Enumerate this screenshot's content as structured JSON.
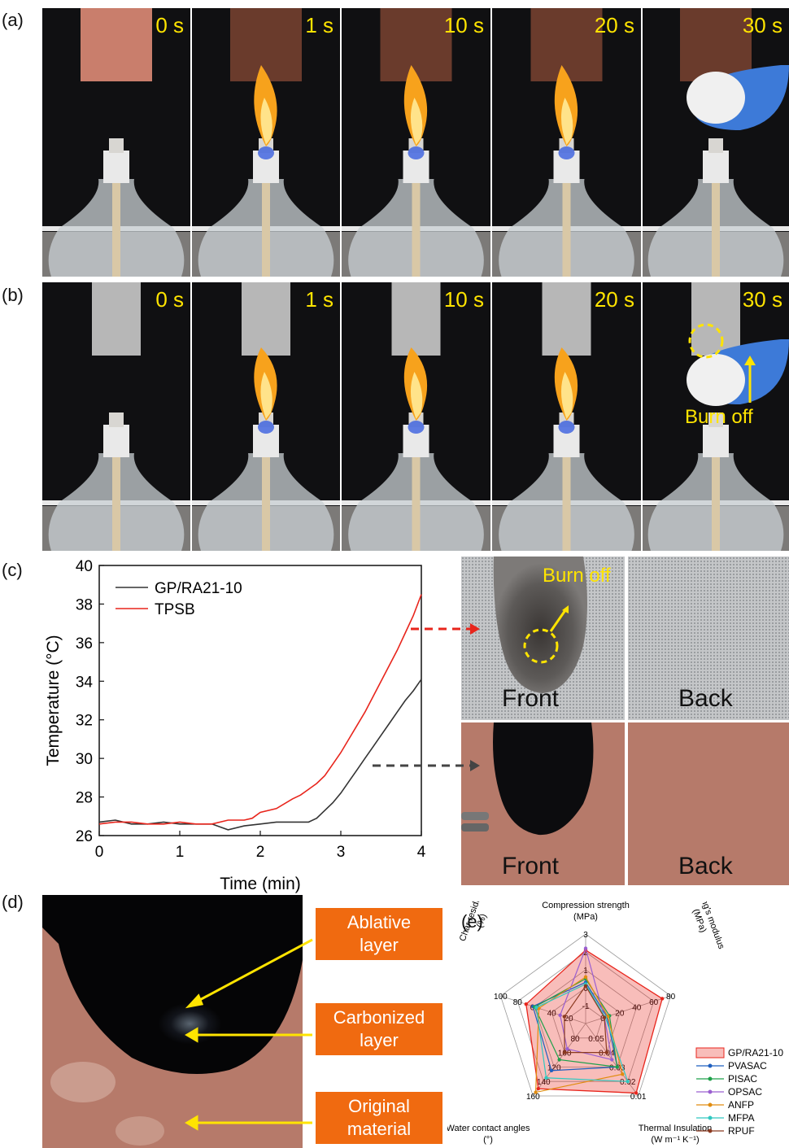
{
  "panels": {
    "a": "(a)",
    "b": "(b)",
    "c": "(c)",
    "d": "(d)",
    "e": "(e)"
  },
  "row_a": {
    "times": [
      "0 s",
      "1 s",
      "10 s",
      "20 s",
      "30 s"
    ]
  },
  "row_b": {
    "times": [
      "0 s",
      "1 s",
      "10 s",
      "20 s",
      "30 s"
    ],
    "annotation": "Burn off"
  },
  "panel_c_photos": {
    "burn_off": "Burn off",
    "front": "Front",
    "back": "Back",
    "front2": "Front",
    "back2": "Back"
  },
  "panel_d": {
    "labels": [
      {
        "line1": "Ablative",
        "line2": "layer"
      },
      {
        "line1": "Carbonized",
        "line2": "layer"
      },
      {
        "line1": "Original",
        "line2": "material"
      }
    ]
  },
  "chart_data": [
    {
      "type": "line",
      "xlabel": "Time (min)",
      "ylabel": "Temperature (°C)",
      "xlim": [
        0,
        4
      ],
      "ylim": [
        26,
        40
      ],
      "xticks": [
        0,
        1,
        2,
        3,
        4
      ],
      "yticks": [
        26,
        28,
        30,
        32,
        34,
        36,
        38,
        40
      ],
      "legend_position": "top-left",
      "series": [
        {
          "name": "GP/RA21-10",
          "color": "#333333",
          "x": [
            0,
            0.2,
            0.4,
            0.6,
            0.8,
            1.0,
            1.2,
            1.4,
            1.6,
            1.8,
            2.0,
            2.2,
            2.4,
            2.6,
            2.7,
            2.8,
            2.9,
            3.0,
            3.1,
            3.2,
            3.3,
            3.4,
            3.5,
            3.6,
            3.7,
            3.8,
            3.9,
            4.0
          ],
          "y": [
            26.7,
            26.8,
            26.6,
            26.6,
            26.7,
            26.6,
            26.6,
            26.6,
            26.3,
            26.5,
            26.6,
            26.7,
            26.7,
            26.7,
            26.9,
            27.3,
            27.7,
            28.2,
            28.8,
            29.4,
            30.0,
            30.6,
            31.2,
            31.8,
            32.4,
            33.0,
            33.5,
            34.1
          ]
        },
        {
          "name": "TPSB",
          "color": "#e8251c",
          "x": [
            0,
            0.2,
            0.4,
            0.6,
            0.8,
            1.0,
            1.2,
            1.4,
            1.6,
            1.8,
            1.9,
            2.0,
            2.2,
            2.4,
            2.5,
            2.6,
            2.7,
            2.8,
            2.9,
            3.0,
            3.1,
            3.2,
            3.3,
            3.4,
            3.5,
            3.6,
            3.7,
            3.8,
            3.9,
            4.0
          ],
          "y": [
            26.6,
            26.7,
            26.7,
            26.6,
            26.6,
            26.7,
            26.6,
            26.6,
            26.8,
            26.8,
            26.9,
            27.2,
            27.4,
            27.9,
            28.1,
            28.4,
            28.7,
            29.1,
            29.7,
            30.3,
            31.0,
            31.7,
            32.4,
            33.2,
            34.0,
            34.8,
            35.6,
            36.5,
            37.4,
            38.5
          ]
        }
      ]
    },
    {
      "type": "radar",
      "title": "",
      "axes": [
        {
          "label_lines": [
            "Compression strength",
            "(MPa)"
          ],
          "ticks": [
            "-1",
            "0",
            "1",
            "2",
            "3"
          ],
          "range": [
            -2,
            3
          ]
        },
        {
          "label_lines": [
            "Young's modulus",
            "(MPa)"
          ],
          "ticks": [
            "0",
            "20",
            "40",
            "60",
            "80"
          ],
          "range": [
            -20,
            80
          ]
        },
        {
          "label_lines": [
            "Thermal Insulation",
            "(W m⁻¹ K⁻¹)"
          ],
          "ticks": [
            "0.05",
            "0.04",
            "0.03",
            "0.02",
            "0.01"
          ],
          "range": [
            0.06,
            0.01
          ]
        },
        {
          "label_lines": [
            "Water contact angles",
            "(°)"
          ],
          "ticks": [
            "80",
            "100",
            "120",
            "140",
            "160"
          ],
          "range": [
            60,
            160
          ]
        },
        {
          "label_lines": [
            "Char residue",
            "(%)"
          ],
          "ticks": [
            "20",
            "40",
            "60",
            "80",
            "100"
          ],
          "range": [
            0,
            100
          ]
        }
      ],
      "series": [
        {
          "name": "GP/RA21-10",
          "color": "#e8251c",
          "fill": true,
          "values": [
            2.1,
            70,
            0.012,
            150,
            70
          ]
        },
        {
          "name": "PVASAC",
          "color": "#1f5fbf",
          "values": [
            0.3,
            5,
            0.03,
            125,
            62
          ]
        },
        {
          "name": "PISAC",
          "color": "#1fa04a",
          "values": [
            0.5,
            8,
            0.03,
            110,
            60
          ]
        },
        {
          "name": "OPSAC",
          "color": "#9a5fd0",
          "values": [
            2.2,
            2,
            0.035,
            95,
            30
          ]
        },
        {
          "name": "ANFP",
          "color": "#e08c10",
          "values": [
            0.6,
            6,
            0.025,
            155,
            55
          ]
        },
        {
          "name": "MFPA",
          "color": "#30c8c0",
          "values": [
            0.2,
            3,
            0.02,
            135,
            58
          ]
        },
        {
          "name": "RPUF",
          "color": "#8b3a20",
          "values": [
            0.1,
            2,
            0.04,
            100,
            25
          ]
        }
      ]
    }
  ]
}
